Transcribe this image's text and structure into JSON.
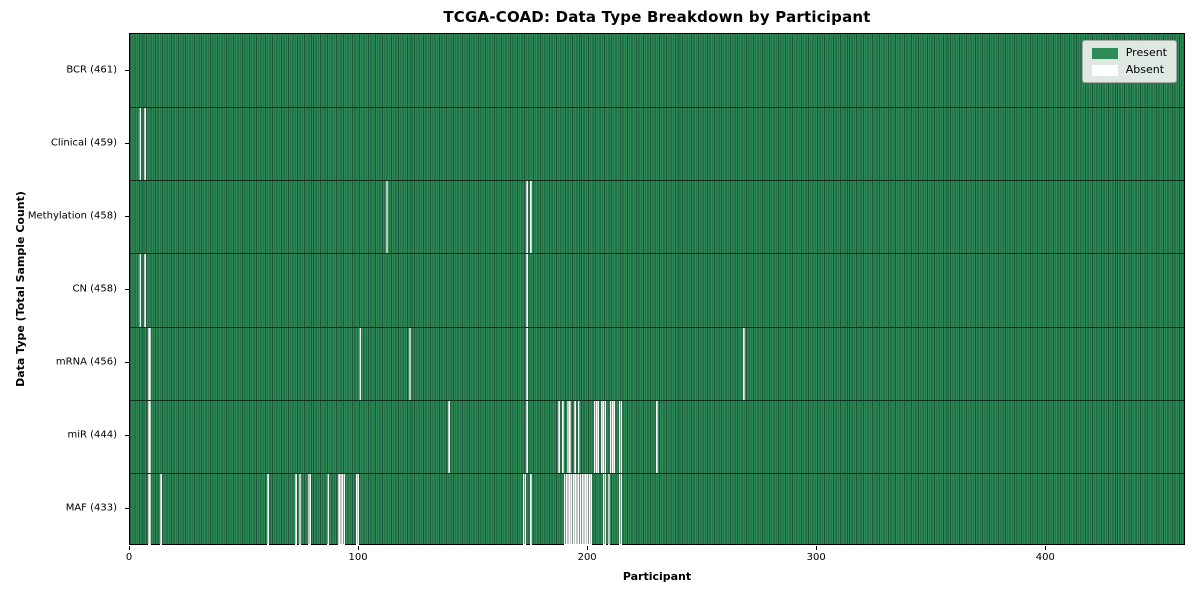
{
  "chart_data": {
    "type": "heatmap",
    "title": "TCGA-COAD: Data Type Breakdown by Participant",
    "xlabel": "Participant",
    "ylabel": "Data Type (Total Sample Count)",
    "n_participants": 461,
    "x_ticks": [
      0,
      100,
      200,
      300,
      400
    ],
    "grid": false,
    "legend_position": "upper right",
    "colors": {
      "present": "#2e8b57",
      "absent": "#ffffff"
    },
    "legend": [
      {
        "label": "Present",
        "color": "#2e8b57"
      },
      {
        "label": "Absent",
        "color": "#ffffff"
      }
    ],
    "rows": [
      {
        "label": "BCR (461)",
        "total": 461,
        "absent": []
      },
      {
        "label": "Clinical (459)",
        "total": 459,
        "absent": [
          4,
          6
        ]
      },
      {
        "label": "Methylation (458)",
        "total": 458,
        "absent": [
          112,
          173,
          175
        ]
      },
      {
        "label": "CN (458)",
        "total": 458,
        "absent": [
          4,
          6,
          173
        ]
      },
      {
        "label": "mRNA (456)",
        "total": 456,
        "absent": [
          8,
          100,
          122,
          173,
          268
        ]
      },
      {
        "label": "miR (444)",
        "total": 444,
        "absent": [
          8,
          139,
          173,
          187,
          189,
          191,
          192,
          194,
          196,
          203,
          204,
          206,
          207,
          210,
          211,
          214,
          230
        ]
      },
      {
        "label": "MAF (433)",
        "total": 433,
        "absent": [
          8,
          13,
          60,
          72,
          74,
          78,
          86,
          91,
          92,
          93,
          99,
          172,
          175,
          190,
          191,
          192,
          193,
          194,
          195,
          196,
          197,
          198,
          199,
          200,
          201,
          207,
          209,
          214
        ]
      }
    ]
  }
}
